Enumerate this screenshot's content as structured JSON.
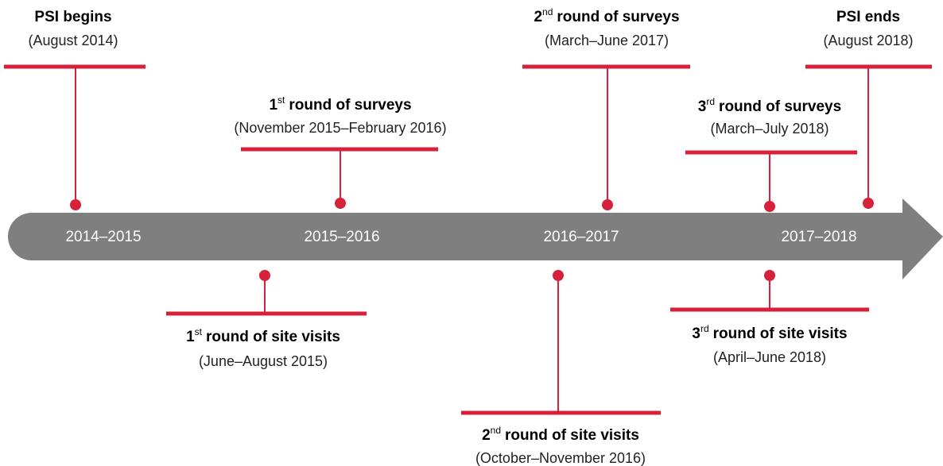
{
  "years": [
    "2014–2015",
    "2015–2016",
    "2016–2017",
    "2017–2018"
  ],
  "events": [
    {
      "title": "PSI begins",
      "date": "(August 2014)"
    },
    {
      "ordinal": "1",
      "suffix": "st",
      "title": "round of surveys",
      "date": "(November 2015–February 2016)"
    },
    {
      "ordinal": "2",
      "suffix": "nd",
      "title": "round of surveys",
      "date": "(March–June 2017)"
    },
    {
      "ordinal": "3",
      "suffix": "rd",
      "title": "round of surveys",
      "date": "(March–July 2018)"
    },
    {
      "title": "PSI ends",
      "date": "(August 2018)"
    },
    {
      "ordinal": "1",
      "suffix": "st",
      "title": "round of site visits",
      "date": "(June–August 2015)"
    },
    {
      "ordinal": "2",
      "suffix": "nd",
      "title": "round of site visits",
      "date": "(October–November 2016)"
    },
    {
      "ordinal": "3",
      "suffix": "rd",
      "title": "round of site visits",
      "date": "(April–June 2018)"
    }
  ]
}
